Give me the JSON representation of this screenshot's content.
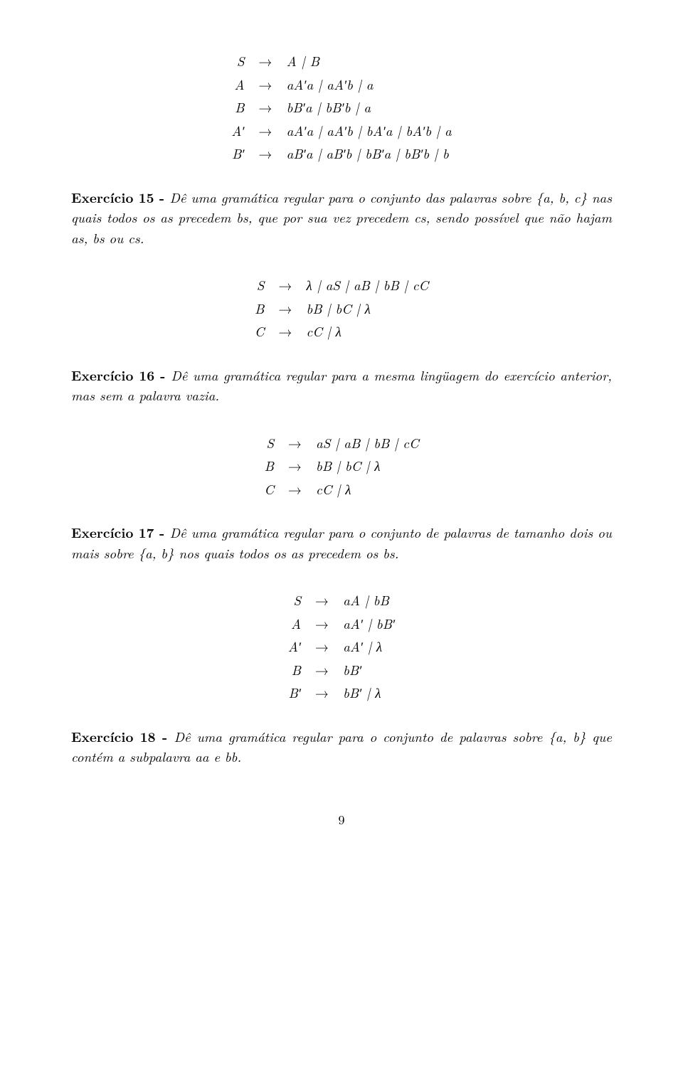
{
  "grammar1": {
    "rows": [
      {
        "left": "S",
        "right": "A | B"
      },
      {
        "left": "A",
        "right": "aA′a | aA′b | a"
      },
      {
        "left": "B",
        "right": "bB′a | bB′b | a"
      },
      {
        "left": "A′",
        "right": "aA′a | aA′b | bA′a | bA′b | a"
      },
      {
        "left": "B′",
        "right": "aB′a | aB′b | bB′a | bB′b | b"
      }
    ]
  },
  "ex15": {
    "bold": "Exercício 15 - ",
    "text": "Dê uma gramática regular para o conjunto das palavras sobre {a, b, c} nas quais todos os as precedem bs, que por sua vez precedem cs, sendo possível que não hajam as, bs ou cs."
  },
  "grammar2": {
    "rows": [
      {
        "left": "S",
        "right": "λ | aS | aB | bB | cC"
      },
      {
        "left": "B",
        "right": "bB | bC | λ"
      },
      {
        "left": "C",
        "right": "cC | λ"
      }
    ]
  },
  "ex16": {
    "bold": "Exercício 16 - ",
    "text": "Dê uma gramática regular para a mesma lingüagem do exercício anterior, mas sem a palavra vazia."
  },
  "grammar3": {
    "rows": [
      {
        "left": "S",
        "right": "aS | aB | bB | cC"
      },
      {
        "left": "B",
        "right": "bB | bC | λ"
      },
      {
        "left": "C",
        "right": "cC | λ"
      }
    ]
  },
  "ex17": {
    "bold": "Exercício 17 - ",
    "text": "Dê uma gramática regular para o conjunto de palavras de tamanho dois ou mais sobre {a, b} nos quais todos os as precedem os bs."
  },
  "grammar4": {
    "rows": [
      {
        "left": "S",
        "right": "aA | bB"
      },
      {
        "left": "A",
        "right": "aA′ | bB′"
      },
      {
        "left": "A′",
        "right": "aA′ | λ"
      },
      {
        "left": "B",
        "right": "bB′"
      },
      {
        "left": "B′",
        "right": "bB′ | λ"
      }
    ]
  },
  "ex18": {
    "bold": "Exercício 18 - ",
    "text": "Dê uma gramática regular para o conjunto de palavras sobre {a, b} que contém a subpalavra aa e bb."
  },
  "arrow": "→",
  "pagenum": "9"
}
